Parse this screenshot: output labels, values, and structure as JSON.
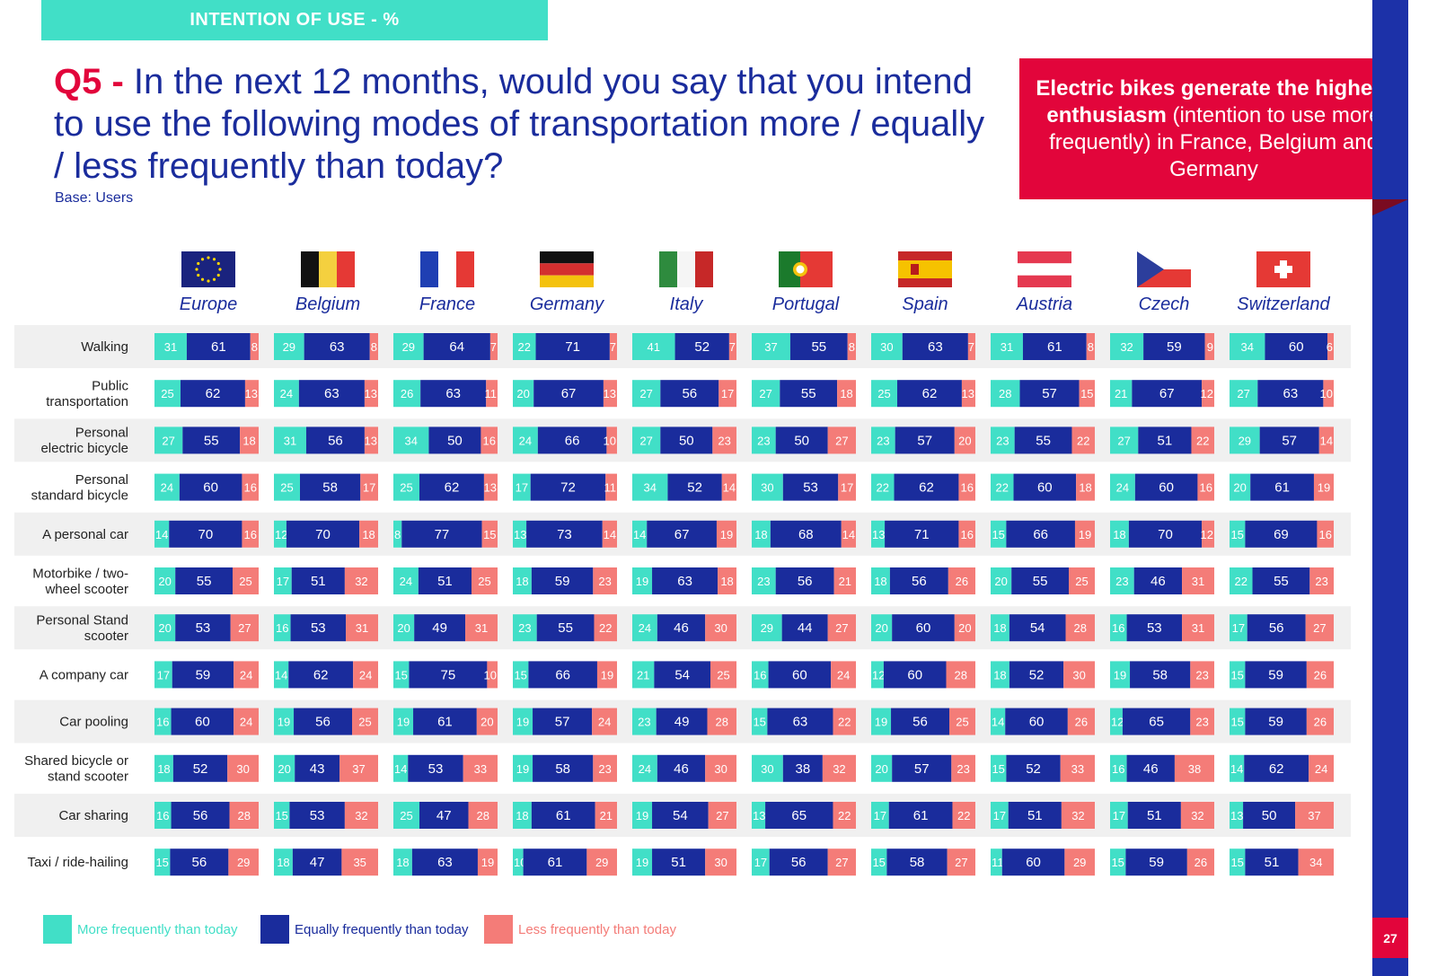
{
  "header": {
    "tag": "INTENTION OF USE - %",
    "question_number": "Q5 -",
    "question_text": "In the next 12 months, would you say that you intend to use the following modes of transportation more / equally / less frequently than today?",
    "base": "Base: Users"
  },
  "callout": {
    "bold": "Electric bikes generate the highest enthusiasm",
    "rest": " (intention to use more frequently) in France, Belgium and Germany"
  },
  "page_number": "27",
  "colors": {
    "more": "#41dfc7",
    "equal": "#1a2c9c",
    "less": "#f47c78",
    "accent": "#e2053b"
  },
  "legend": {
    "more": "More frequently than today",
    "equal": "Equally frequently than today",
    "less": "Less frequently than today"
  },
  "flag_icons": [
    "eu-flag-icon",
    "belgium-flag-icon",
    "france-flag-icon",
    "germany-flag-icon",
    "italy-flag-icon",
    "portugal-flag-icon",
    "spain-flag-icon",
    "austria-flag-icon",
    "czech-flag-icon",
    "switzerland-flag-icon"
  ],
  "chart_data": {
    "type": "bar",
    "stacked": "horizontal-100%",
    "countries": [
      "Europe",
      "Belgium",
      "France",
      "Germany",
      "Italy",
      "Portugal",
      "Spain",
      "Austria",
      "Czech",
      "Switzerland"
    ],
    "categories": [
      "Walking",
      "Public transportation",
      "Personal electric bicycle",
      "Personal standard bicycle",
      "A personal car",
      "Motorbike / two-wheel scooter",
      "Personal Stand scooter",
      "A company car",
      "Car pooling",
      "Shared bicycle or stand scooter",
      "Car sharing",
      "Taxi / ride-hailing"
    ],
    "category_lines": [
      [
        "Walking"
      ],
      [
        "Public",
        "transportation"
      ],
      [
        "Personal",
        "electric bicycle"
      ],
      [
        "Personal",
        "standard bicycle"
      ],
      [
        "A personal car"
      ],
      [
        "Motorbike / two-",
        "wheel scooter"
      ],
      [
        "Personal Stand",
        "scooter"
      ],
      [
        "A company car"
      ],
      [
        "Car pooling"
      ],
      [
        "Shared bicycle or",
        "stand scooter"
      ],
      [
        "Car sharing"
      ],
      [
        "Taxi / ride-hailing"
      ]
    ],
    "series_names": [
      "More frequently than today",
      "Equally frequently than today",
      "Less frequently than today"
    ],
    "values": [
      [
        [
          31,
          61,
          8
        ],
        [
          29,
          63,
          8
        ],
        [
          29,
          64,
          7
        ],
        [
          22,
          71,
          7
        ],
        [
          41,
          52,
          7
        ],
        [
          37,
          55,
          8
        ],
        [
          30,
          63,
          7
        ],
        [
          31,
          61,
          8
        ],
        [
          32,
          59,
          9
        ],
        [
          34,
          60,
          6
        ]
      ],
      [
        [
          25,
          62,
          13
        ],
        [
          24,
          63,
          13
        ],
        [
          26,
          63,
          11
        ],
        [
          20,
          67,
          13
        ],
        [
          27,
          56,
          17
        ],
        [
          27,
          55,
          18
        ],
        [
          25,
          62,
          13
        ],
        [
          28,
          57,
          15
        ],
        [
          21,
          67,
          12
        ],
        [
          27,
          63,
          10
        ]
      ],
      [
        [
          27,
          55,
          18
        ],
        [
          31,
          56,
          13
        ],
        [
          34,
          50,
          16
        ],
        [
          24,
          66,
          10
        ],
        [
          27,
          50,
          23
        ],
        [
          23,
          50,
          27
        ],
        [
          23,
          57,
          20
        ],
        [
          23,
          55,
          22
        ],
        [
          27,
          51,
          22
        ],
        [
          29,
          57,
          14
        ]
      ],
      [
        [
          24,
          60,
          16
        ],
        [
          25,
          58,
          17
        ],
        [
          25,
          62,
          13
        ],
        [
          17,
          72,
          11
        ],
        [
          34,
          52,
          14
        ],
        [
          30,
          53,
          17
        ],
        [
          22,
          62,
          16
        ],
        [
          22,
          60,
          18
        ],
        [
          24,
          60,
          16
        ],
        [
          20,
          61,
          19
        ]
      ],
      [
        [
          14,
          70,
          16
        ],
        [
          12,
          70,
          18
        ],
        [
          8,
          77,
          15
        ],
        [
          13,
          73,
          14
        ],
        [
          14,
          67,
          19
        ],
        [
          18,
          68,
          14
        ],
        [
          13,
          71,
          16
        ],
        [
          15,
          66,
          19
        ],
        [
          18,
          70,
          12
        ],
        [
          15,
          69,
          16
        ]
      ],
      [
        [
          20,
          55,
          25
        ],
        [
          17,
          51,
          32
        ],
        [
          24,
          51,
          25
        ],
        [
          18,
          59,
          23
        ],
        [
          19,
          63,
          18
        ],
        [
          23,
          56,
          21
        ],
        [
          18,
          56,
          26
        ],
        [
          20,
          55,
          25
        ],
        [
          23,
          46,
          31
        ],
        [
          22,
          55,
          23
        ]
      ],
      [
        [
          20,
          53,
          27
        ],
        [
          16,
          53,
          31
        ],
        [
          20,
          49,
          31
        ],
        [
          23,
          55,
          22
        ],
        [
          24,
          46,
          30
        ],
        [
          29,
          44,
          27
        ],
        [
          20,
          60,
          20
        ],
        [
          18,
          54,
          28
        ],
        [
          16,
          53,
          31
        ],
        [
          17,
          56,
          27
        ]
      ],
      [
        [
          17,
          59,
          24
        ],
        [
          14,
          62,
          24
        ],
        [
          15,
          75,
          10
        ],
        [
          15,
          66,
          19
        ],
        [
          21,
          54,
          25
        ],
        [
          16,
          60,
          24
        ],
        [
          12,
          60,
          28
        ],
        [
          18,
          52,
          30
        ],
        [
          19,
          58,
          23
        ],
        [
          15,
          59,
          26
        ]
      ],
      [
        [
          16,
          60,
          24
        ],
        [
          19,
          56,
          25
        ],
        [
          19,
          61,
          20
        ],
        [
          19,
          57,
          24
        ],
        [
          23,
          49,
          28
        ],
        [
          15,
          63,
          22
        ],
        [
          19,
          56,
          25
        ],
        [
          14,
          60,
          26
        ],
        [
          12,
          65,
          23
        ],
        [
          15,
          59,
          26
        ]
      ],
      [
        [
          18,
          52,
          30
        ],
        [
          20,
          43,
          37
        ],
        [
          14,
          53,
          33
        ],
        [
          19,
          58,
          23
        ],
        [
          24,
          46,
          30
        ],
        [
          30,
          38,
          32
        ],
        [
          20,
          57,
          23
        ],
        [
          15,
          52,
          33
        ],
        [
          16,
          46,
          38
        ],
        [
          14,
          62,
          24
        ]
      ],
      [
        [
          16,
          56,
          28
        ],
        [
          15,
          53,
          32
        ],
        [
          25,
          47,
          28
        ],
        [
          18,
          61,
          21
        ],
        [
          19,
          54,
          27
        ],
        [
          13,
          65,
          22
        ],
        [
          17,
          61,
          22
        ],
        [
          17,
          51,
          32
        ],
        [
          17,
          51,
          32
        ],
        [
          13,
          50,
          37
        ]
      ],
      [
        [
          15,
          56,
          29
        ],
        [
          18,
          47,
          35
        ],
        [
          18,
          63,
          19
        ],
        [
          10,
          61,
          29
        ],
        [
          19,
          51,
          30
        ],
        [
          17,
          56,
          27
        ],
        [
          15,
          58,
          27
        ],
        [
          11,
          60,
          29
        ],
        [
          15,
          59,
          26
        ],
        [
          15,
          51,
          34
        ]
      ]
    ]
  }
}
